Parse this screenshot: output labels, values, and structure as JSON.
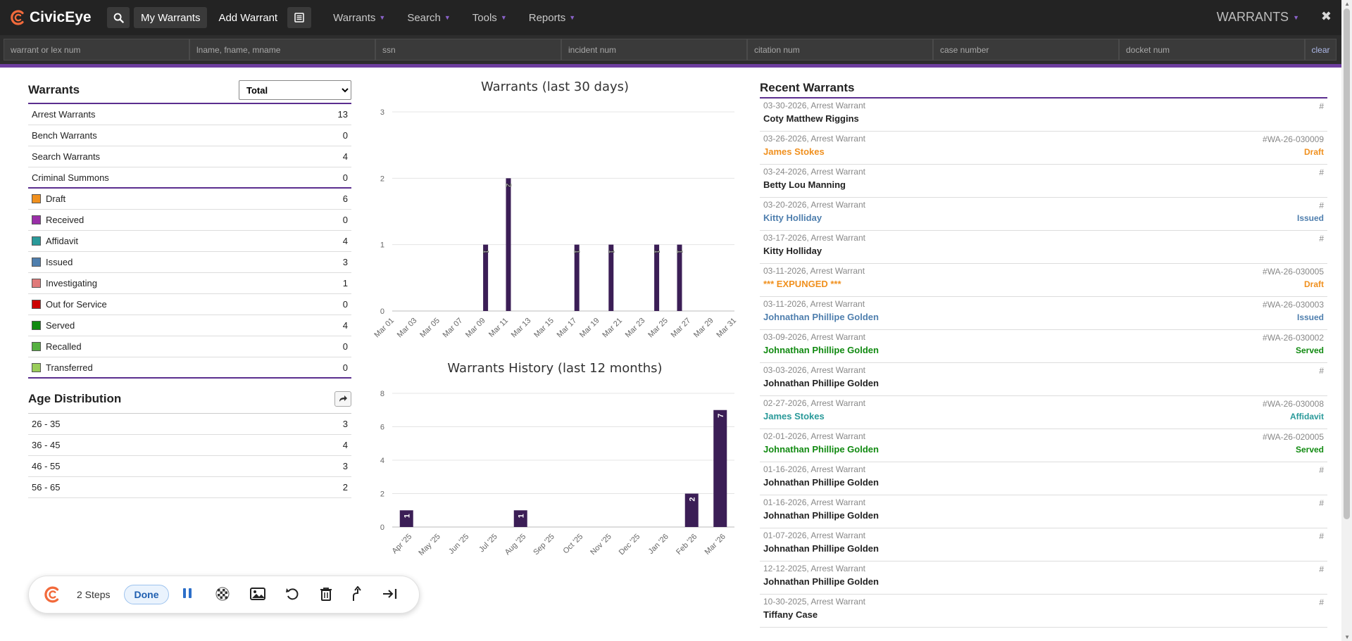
{
  "app": {
    "name": "CivicEye",
    "module": "WARRANTS"
  },
  "topnav": {
    "my_warrants": "My Warrants",
    "add_warrant": "Add Warrant",
    "menus": [
      "Warrants",
      "Search",
      "Tools",
      "Reports"
    ]
  },
  "search": {
    "fields": [
      "warrant or lex num",
      "lname, fname, mname",
      "ssn",
      "incident num",
      "citation num",
      "case number",
      "docket num"
    ],
    "clear": "clear"
  },
  "colors": {
    "accent": "#5b2e8f",
    "bar": "#3b1e56"
  },
  "warrants_panel": {
    "title": "Warrants",
    "filter": "Total",
    "types": [
      {
        "label": "Arrest Warrants",
        "count": "13"
      },
      {
        "label": "Bench Warrants",
        "count": "0"
      },
      {
        "label": "Search Warrants",
        "count": "4"
      },
      {
        "label": "Criminal Summons",
        "count": "0"
      }
    ],
    "statuses": [
      {
        "label": "Draft",
        "count": "6",
        "color": "#f0901e"
      },
      {
        "label": "Received",
        "count": "0",
        "color": "#9a2fa8"
      },
      {
        "label": "Affidavit",
        "count": "4",
        "color": "#2a9a9a"
      },
      {
        "label": "Issued",
        "count": "3",
        "color": "#4f7fae"
      },
      {
        "label": "Investigating",
        "count": "1",
        "color": "#e07a7a"
      },
      {
        "label": "Out for Service",
        "count": "0",
        "color": "#cc0000"
      },
      {
        "label": "Served",
        "count": "4",
        "color": "#118a11"
      },
      {
        "label": "Recalled",
        "count": "0",
        "color": "#55b040"
      },
      {
        "label": "Transferred",
        "count": "0",
        "color": "#9acd5a"
      }
    ]
  },
  "age_panel": {
    "title": "Age Distribution",
    "rows": [
      {
        "label": "26 - 35",
        "count": "3"
      },
      {
        "label": "36 - 45",
        "count": "4"
      },
      {
        "label": "46 - 55",
        "count": "3"
      },
      {
        "label": "56 - 65",
        "count": "2"
      }
    ]
  },
  "chart_data": [
    {
      "type": "bar",
      "title": "Warrants (last 30 days)",
      "ylim": [
        0,
        3
      ],
      "yticks": [
        "0",
        "1",
        "2",
        "3"
      ],
      "xtick_labels": [
        "Mar 01",
        "Mar 03",
        "Mar 05",
        "Mar 07",
        "Mar 09",
        "Mar 11",
        "Mar 13",
        "Mar 15",
        "Mar 17",
        "Mar 19",
        "Mar 21",
        "Mar 23",
        "Mar 25",
        "Mar 27",
        "Mar 29",
        "Mar 31"
      ],
      "bars": [
        {
          "day": 9,
          "value": 1
        },
        {
          "day": 11,
          "value": 2
        },
        {
          "day": 17,
          "value": 1
        },
        {
          "day": 20,
          "value": 1
        },
        {
          "day": 24,
          "value": 1
        },
        {
          "day": 26,
          "value": 1
        }
      ]
    },
    {
      "type": "bar",
      "title": "Warrants History (last 12 months)",
      "ylim": [
        0,
        8
      ],
      "yticks": [
        "0",
        "2",
        "4",
        "6",
        "8"
      ],
      "categories": [
        "Apr '25",
        "May '25",
        "Jun '25",
        "Jul '25",
        "Aug '25",
        "Sep '25",
        "Oct '25",
        "Nov '25",
        "Dec '25",
        "Jan '26",
        "Feb '26",
        "Mar '26"
      ],
      "values": [
        1,
        0,
        0,
        0,
        1,
        0,
        0,
        0,
        0,
        0,
        2,
        7
      ]
    }
  ],
  "recent": {
    "title": "Recent Warrants",
    "items": [
      {
        "meta": "03-30-2026, Arrest Warrant",
        "name": "Coty Matthew Riggins",
        "num": "#",
        "status": "",
        "color": "#222222"
      },
      {
        "meta": "03-26-2026, Arrest Warrant",
        "name": "James Stokes",
        "num": "#WA-26-030009",
        "status": "Draft",
        "color": "#f0901e"
      },
      {
        "meta": "03-24-2026, Arrest Warrant",
        "name": "Betty Lou Manning",
        "num": "#",
        "status": "",
        "color": "#222222"
      },
      {
        "meta": "03-20-2026, Arrest Warrant",
        "name": "Kitty Holliday",
        "num": "#",
        "status": "Issued",
        "color": "#4f7fae"
      },
      {
        "meta": "03-17-2026, Arrest Warrant",
        "name": "Kitty Holliday",
        "num": "#",
        "status": "",
        "color": "#222222"
      },
      {
        "meta": "03-11-2026, Arrest Warrant",
        "name": "*** EXPUNGED ***",
        "num": "#WA-26-030005",
        "status": "Draft",
        "color": "#f0901e"
      },
      {
        "meta": "03-11-2026, Arrest Warrant",
        "name": "Johnathan Phillipe Golden",
        "num": "#WA-26-030003",
        "status": "Issued",
        "color": "#4f7fae"
      },
      {
        "meta": "03-09-2026, Arrest Warrant",
        "name": "Johnathan Phillipe Golden",
        "num": "#WA-26-030002",
        "status": "Served",
        "color": "#118a11"
      },
      {
        "meta": "03-03-2026, Arrest Warrant",
        "name": "Johnathan Phillipe Golden",
        "num": "#",
        "status": "",
        "color": "#222222"
      },
      {
        "meta": "02-27-2026, Arrest Warrant",
        "name": "James Stokes",
        "num": "#WA-26-030008",
        "status": "Affidavit",
        "color": "#2a9a9a"
      },
      {
        "meta": "02-01-2026, Arrest Warrant",
        "name": "Johnathan Phillipe Golden",
        "num": "#WA-26-020005",
        "status": "Served",
        "color": "#118a11"
      },
      {
        "meta": "01-16-2026, Arrest Warrant",
        "name": "Johnathan Phillipe Golden",
        "num": "#",
        "status": "",
        "color": "#222222"
      },
      {
        "meta": "01-16-2026, Arrest Warrant",
        "name": "Johnathan Phillipe Golden",
        "num": "#",
        "status": "",
        "color": "#222222"
      },
      {
        "meta": "01-07-2026, Arrest Warrant",
        "name": "Johnathan Phillipe Golden",
        "num": "#",
        "status": "",
        "color": "#222222"
      },
      {
        "meta": "12-12-2025, Arrest Warrant",
        "name": "Johnathan Phillipe Golden",
        "num": "#",
        "status": "",
        "color": "#222222"
      },
      {
        "meta": "10-30-2025, Arrest Warrant",
        "name": "Tiffany Case",
        "num": "#",
        "status": "",
        "color": "#222222"
      }
    ]
  },
  "floatbar": {
    "steps": "2 Steps",
    "done": "Done"
  }
}
